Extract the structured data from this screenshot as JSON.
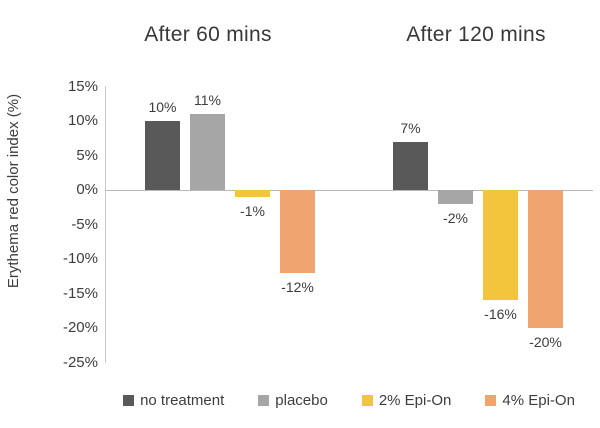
{
  "chart_data": {
    "type": "bar",
    "ylabel": "Erythema red color index (%)",
    "ytick_values": [
      15,
      10,
      5,
      0,
      -5,
      -10,
      -15,
      -20,
      -25
    ],
    "ytick_labels": [
      "15%",
      "10%",
      "5%",
      "0%",
      "-5%",
      "-10%",
      "-15%",
      "-20%",
      "-25%"
    ],
    "ylim": [
      -25,
      15
    ],
    "grid": false,
    "legend_position": "bottom",
    "groups": [
      {
        "label": "After 60 mins",
        "values": [
          10,
          11,
          -1,
          -12
        ],
        "value_labels": [
          "10%",
          "11%",
          "-1%",
          "-12%"
        ]
      },
      {
        "label": "After 120 mins",
        "values": [
          7,
          -2,
          -16,
          -20
        ],
        "value_labels": [
          "7%",
          "-2%",
          "-16%",
          "-20%"
        ]
      }
    ],
    "series": [
      {
        "name": "no treatment",
        "color": "#595959"
      },
      {
        "name": "placebo",
        "color": "#a6a6a6"
      },
      {
        "name": "2% Epi-On",
        "color": "#f3c53d"
      },
      {
        "name": "4% Epi-On",
        "color": "#f0a571"
      }
    ]
  },
  "colors": {
    "axis_line": "#c9c9c9",
    "zero_line": "#b8b8b8",
    "text": "#3d3d3d",
    "background": "#ffffff"
  }
}
